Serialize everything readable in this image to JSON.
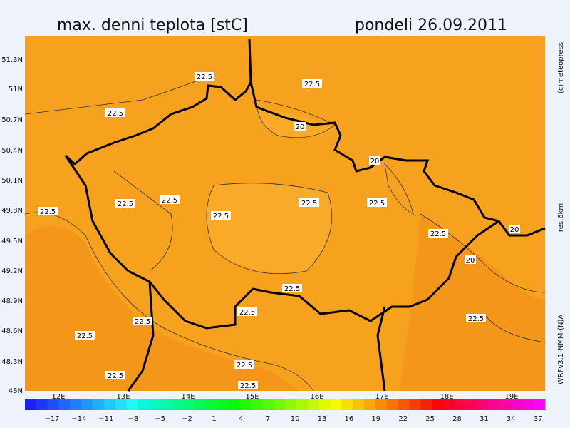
{
  "header": {
    "title": "max. denni teplota [stC]",
    "date": "pondeli 26.09.2011"
  },
  "side_labels": [
    "(c)meteopress",
    "res.6km",
    "WRFv3.1-NMM-(N)A"
  ],
  "lat_labels": [
    "51.3N",
    "51N",
    "50.7N",
    "50.4N",
    "50.1N",
    "49.8N",
    "49.5N",
    "49.2N",
    "48.9N",
    "48.6N",
    "48.3N",
    "48N"
  ],
  "lon_labels": [
    "12E",
    "13E",
    "14E",
    "15E",
    "16E",
    "17E",
    "18E",
    "19E"
  ],
  "contour_labels": [
    "22.5",
    "22.5",
    "22.5",
    "20",
    "20",
    "22.5",
    "22.5",
    "22.5",
    "22.5",
    "22.5",
    "22.5",
    "22.5",
    "20",
    "20",
    "22.5",
    "22.5",
    "22.5",
    "22.5",
    "22.5",
    "22.5",
    "22.5",
    "22.5"
  ],
  "colorbar_labels": [
    "−17",
    "−14",
    "−11",
    "−8",
    "−5",
    "−2",
    "1",
    "4",
    "7",
    "10",
    "13",
    "16",
    "19",
    "22",
    "25",
    "28",
    "31",
    "34",
    "37"
  ]
}
